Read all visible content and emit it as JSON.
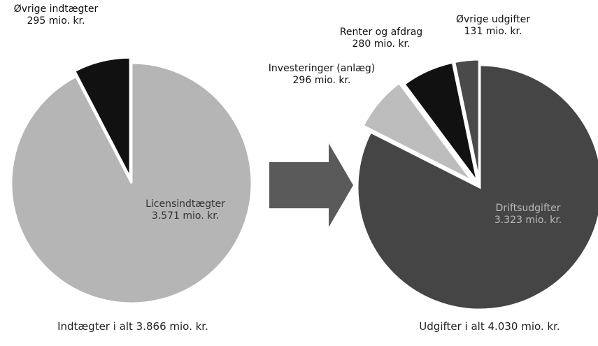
{
  "chart_data": [
    {
      "type": "pie",
      "title": "Indtægter i alt 3.866 mio. kr.",
      "categories": [
        "Øvrige indtægter",
        "Licensindtægter"
      ],
      "values": [
        295,
        3571
      ],
      "value_labels": [
        "295 mio. kr.",
        "3.571 mio. kr."
      ],
      "colors": [
        "#111111",
        "#b5b5b5"
      ]
    },
    {
      "type": "pie",
      "title": "Udgifter i alt 4.030 mio. kr.",
      "categories": [
        "Øvrige udgifter",
        "Renter og afdrag",
        "Investeringer (anlæg)",
        "Driftsudgifter"
      ],
      "values": [
        131,
        280,
        296,
        3323
      ],
      "value_labels": [
        "131 mio. kr.",
        "280 mio. kr.",
        "296 mio. kr.",
        "3.323 mio. kr."
      ],
      "colors": [
        "#4a4a4a",
        "#111111",
        "#bdbdbd",
        "#454545"
      ]
    }
  ]
}
